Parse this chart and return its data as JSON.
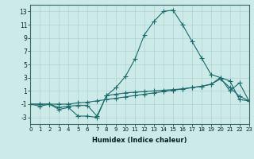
{
  "xlabel": "Humidex (Indice chaleur)",
  "ylabel": "",
  "background_color": "#cceae8",
  "grid_color": "#aed4d0",
  "line_color": "#1a6b6b",
  "xmin": 0,
  "xmax": 23,
  "ymin": -4,
  "ymax": 14,
  "yticks": [
    -3,
    -1,
    1,
    3,
    5,
    7,
    9,
    11,
    13
  ],
  "xticks": [
    0,
    1,
    2,
    3,
    4,
    5,
    6,
    7,
    8,
    9,
    10,
    11,
    12,
    13,
    14,
    15,
    16,
    17,
    18,
    19,
    20,
    21,
    22,
    23
  ],
  "line1_x": [
    0,
    1,
    2,
    3,
    4,
    5,
    6,
    7,
    8,
    9,
    10,
    11,
    12,
    13,
    14,
    15,
    16,
    17,
    18,
    19,
    20,
    21,
    22,
    23
  ],
  "line1_y": [
    -1,
    -1.3,
    -1,
    -1.8,
    -1.5,
    -2.8,
    -2.8,
    -3.0,
    0.3,
    1.5,
    3.2,
    5.8,
    9.5,
    11.5,
    13.0,
    13.2,
    11.0,
    8.5,
    6.0,
    3.5,
    3.0,
    1.0,
    2.2,
    -0.5
  ],
  "line2_x": [
    0,
    1,
    2,
    3,
    4,
    5,
    6,
    7,
    8,
    9,
    10,
    11,
    12,
    13,
    14,
    15,
    16,
    17,
    18,
    19,
    20,
    21,
    22,
    23
  ],
  "line2_y": [
    -1,
    -1,
    -1,
    -1.5,
    -1.3,
    -1.2,
    -1.2,
    -2.8,
    0.3,
    0.5,
    0.7,
    0.8,
    0.9,
    1.0,
    1.1,
    1.2,
    1.3,
    1.5,
    1.7,
    2.0,
    3.0,
    2.5,
    -0.3,
    -0.5
  ],
  "line3_x": [
    0,
    1,
    2,
    3,
    4,
    5,
    6,
    7,
    8,
    9,
    10,
    11,
    12,
    13,
    14,
    15,
    16,
    17,
    18,
    19,
    20,
    21,
    22,
    23
  ],
  "line3_y": [
    -1,
    -1,
    -1,
    -1,
    -1,
    -0.8,
    -0.7,
    -0.5,
    -0.3,
    -0.1,
    0.1,
    0.3,
    0.5,
    0.7,
    0.9,
    1.1,
    1.3,
    1.5,
    1.7,
    2.0,
    2.8,
    1.5,
    0.2,
    -0.5
  ]
}
